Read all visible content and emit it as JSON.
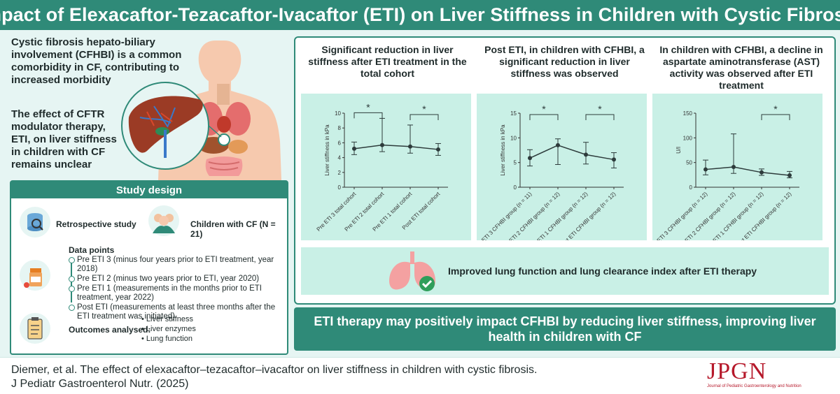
{
  "header": {
    "title": "Impact of Elexacaftor-Tezacaftor-Ivacaftor (ETI) on Liver Stiffness in Children with Cystic Fibrosis"
  },
  "intro": {
    "p1": "Cystic fibrosis hepato-biliary involvement (CFHBI) is a common comorbidity in CF, contributing to increased morbidity",
    "p2": "The effect of CFTR modulator therapy, ETI, on liver stiffness in children with CF remains unclear"
  },
  "study": {
    "title": "Study design",
    "retro": "Retrospective study",
    "children": "Children with CF (N = 21)",
    "dp_title": "Data points",
    "data_points": [
      "Pre ETI 3 (minus four years prior to ETI treatment, year 2018)",
      "Pre ETI 2 (minus two years prior to ETI, year 2020)",
      "Pre ETI 1 (measurements in the months prior to ETI treatment, year 2022)",
      "Post ETI (measurements at least three months after the ETI treatment was initiated)"
    ],
    "outcomes_label": "Outcomes analysed:",
    "outcomes": [
      "• Liver stiffness",
      "• Liver enzymes",
      "• Lung function"
    ]
  },
  "charts": {
    "titles": [
      "Significant reduction in liver stiffness after ETI treatment in the total cohort",
      "Post ETI, in children with CFHBI, a significant reduction in liver stiffness was observed",
      "In children with CFHBI, a decline in aspartate aminotransferase (AST) activity was observed after ETI treatment"
    ]
  },
  "chart_data": [
    {
      "type": "line",
      "ylabel": "Liver stiffness in kPa",
      "ylim": [
        0,
        10
      ],
      "yticks": [
        0,
        2,
        4,
        6,
        8,
        10
      ],
      "categories": [
        "Pre ETI 3 total cohort",
        "Pre ETI 2 total cohort",
        "Pre ETI 1 total cohort",
        "Post ETI total cohort"
      ],
      "values": [
        5.2,
        5.7,
        5.5,
        5.1
      ],
      "err_low": [
        4.4,
        4.8,
        4.6,
        4.3
      ],
      "err_high": [
        6.1,
        9.3,
        8.4,
        5.9
      ],
      "significance": [
        {
          "from": 0,
          "to": 1,
          "label": "*"
        },
        {
          "from": 2,
          "to": 3,
          "label": "*"
        }
      ]
    },
    {
      "type": "line",
      "ylabel": "Liver stiffness in kPa",
      "ylim": [
        0,
        15
      ],
      "yticks": [
        0,
        5,
        10,
        15
      ],
      "categories": [
        "Pre ETI 3 CFHBI group (n = 11)",
        "Pre ETI 2 CFHBI group (n = 12)",
        "Pre ETI 1 CFHBI group (n = 12)",
        "Post ETI CFHBI group (n = 12)"
      ],
      "values": [
        5.9,
        8.5,
        6.6,
        5.6
      ],
      "err_low": [
        4.3,
        4.6,
        4.7,
        3.9
      ],
      "err_high": [
        7.6,
        9.8,
        9.1,
        7.0
      ],
      "significance": [
        {
          "from": 0,
          "to": 1,
          "label": "*"
        },
        {
          "from": 2,
          "to": 3,
          "label": "*"
        }
      ]
    },
    {
      "type": "line",
      "ylabel": "U/l",
      "ylim": [
        0,
        150
      ],
      "yticks": [
        0,
        50,
        100,
        150
      ],
      "categories": [
        "AST pre ETI 3 CFHBI group (n = 12)",
        "AST pre ETI 2 CFHBI group (n = 12)",
        "AST pre ETI 1 CFHBI group (n = 12)",
        "AST post ETI CFHBI group (n = 12)"
      ],
      "values": [
        36,
        41,
        30,
        24
      ],
      "err_low": [
        25,
        28,
        24,
        19
      ],
      "err_high": [
        55,
        108,
        37,
        32
      ],
      "significance": [
        {
          "from": 2,
          "to": 3,
          "label": "*"
        }
      ]
    }
  ],
  "lung": {
    "text": "Improved lung function and lung clearance index after ETI therapy"
  },
  "conclusion": "ETI therapy may positively impact CFHBI by reducing liver stiffness, improving liver health in children with CF",
  "citation": {
    "line1": "Diemer, et al. The effect of elexacaftor–tezacaftor–ivacaftor on liver stiffness in children with cystic fibrosis.",
    "line2": "J Pediatr Gastroenterol Nutr. (2025)"
  },
  "journal": {
    "logo": "JPGN",
    "subtitle": "Journal of Pediatric Gastroenterology and Nutrition"
  },
  "colors": {
    "accent": "#2f8a78",
    "panel": "#c9f0e6",
    "brand": "#b6192b"
  }
}
